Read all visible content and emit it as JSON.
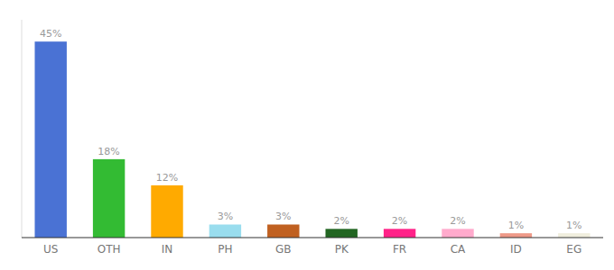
{
  "chart_data": {
    "type": "bar",
    "categories": [
      "US",
      "OTH",
      "IN",
      "PH",
      "GB",
      "PK",
      "FR",
      "CA",
      "ID",
      "EG"
    ],
    "values": [
      45,
      18,
      12,
      3,
      3,
      2,
      2,
      2,
      1,
      1
    ],
    "value_labels": [
      "45%",
      "18%",
      "12%",
      "3%",
      "3%",
      "2%",
      "2%",
      "2%",
      "1%",
      "1%"
    ],
    "colors": [
      "#4a72d4",
      "#33bb33",
      "#ffaa00",
      "#99ddee",
      "#c06020",
      "#226622",
      "#ff2288",
      "#ffaacc",
      "#ee9988",
      "#f0eedd"
    ],
    "ylim": [
      0,
      50
    ],
    "data_labels": true,
    "tick_labels": "x"
  }
}
